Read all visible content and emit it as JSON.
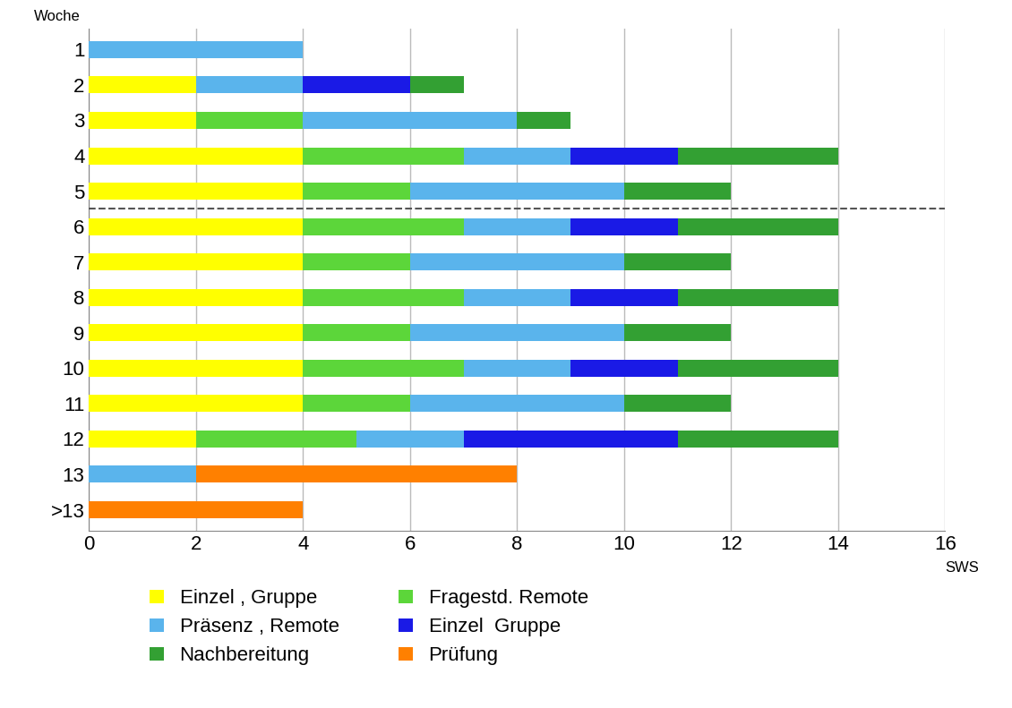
{
  "chart_data": {
    "type": "bar",
    "orientation": "horizontal",
    "stacked": true,
    "xlabel": "SWS",
    "ylabel": "Woche",
    "categories": [
      "1",
      "2",
      "3",
      "4",
      "5",
      "6",
      "7",
      "8",
      "9",
      "10",
      "11",
      "12",
      "13",
      ">13"
    ],
    "series": [
      {
        "name": "Einzel , Gruppe",
        "color": "#ffff00",
        "values": [
          0,
          2,
          2,
          4,
          4,
          4,
          4,
          4,
          4,
          4,
          4,
          2,
          0,
          0
        ]
      },
      {
        "name": "Fragestd. Remote",
        "color": "#5cd63a",
        "values": [
          0,
          0,
          2,
          3,
          2,
          3,
          2,
          3,
          2,
          3,
          2,
          3,
          0,
          0
        ]
      },
      {
        "name": "Präsenz , Remote",
        "color": "#5ab4ec",
        "values": [
          4,
          2,
          4,
          2,
          4,
          2,
          4,
          2,
          4,
          2,
          4,
          2,
          2,
          0
        ]
      },
      {
        "name": "Einzel  Gruppe",
        "color": "#1a1ae6",
        "values": [
          0,
          2,
          0,
          2,
          0,
          2,
          0,
          2,
          0,
          2,
          0,
          4,
          0,
          0
        ]
      },
      {
        "name": "Nachbereitung",
        "color": "#33a033",
        "values": [
          0,
          1,
          1,
          3,
          2,
          3,
          2,
          3,
          2,
          3,
          2,
          3,
          0,
          0
        ]
      },
      {
        "name": "Prüfung",
        "color": "#ff8000",
        "values": [
          0,
          0,
          0,
          0,
          0,
          0,
          0,
          0,
          0,
          0,
          0,
          0,
          6,
          4
        ]
      }
    ],
    "xlim": [
      0,
      16
    ],
    "xticks": [
      0,
      2,
      4,
      6,
      8,
      10,
      12,
      14,
      16
    ],
    "grid": true
  }
}
